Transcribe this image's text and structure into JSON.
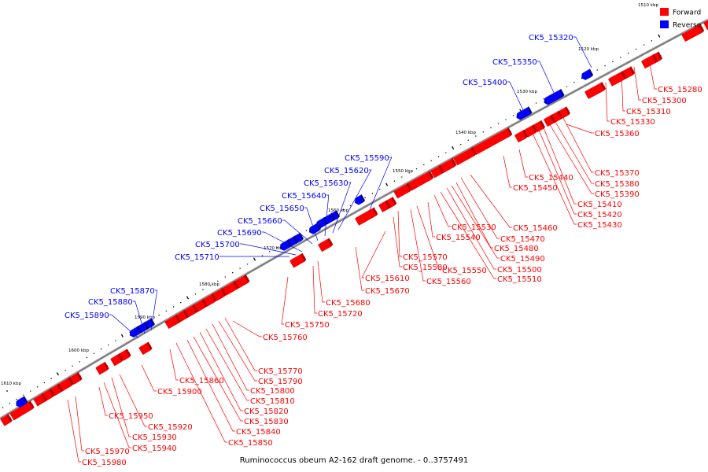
{
  "caption": "Ruminococcus obeum A2-162 draft genome. - 0..3757491",
  "legend": [
    {
      "label": "Forward",
      "color": "#ff0000"
    },
    {
      "label": "Reverse",
      "color": "#0000ff"
    }
  ],
  "colors": {
    "forward": "#ff0000",
    "reverse": "#0000ff",
    "backbone": "#808080"
  },
  "tick_labels": [
    "1510 kbp",
    "1520 kbp",
    "1530 kbp",
    "1540 kbp",
    "1550 kbp",
    "1560 kbp",
    "1570 kbp",
    "1580 kbp",
    "1590 kbp",
    "1600 kbp",
    "1610 kbp"
  ],
  "forward_genes": [
    "CK5_15280",
    "CK5_15300",
    "CK5_15310",
    "CK5_15330",
    "CK5_15360",
    "CK5_15370",
    "CK5_15380",
    "CK5_15390",
    "CK5_15410",
    "CK5_15420",
    "CK5_15430",
    "CK5_15440",
    "CK5_15450",
    "CK5_15460",
    "CK5_15470",
    "CK5_15480",
    "CK5_15490",
    "CK5_15500",
    "CK5_15510",
    "CK5_15530",
    "CK5_15540",
    "CK5_15550",
    "CK5_15560",
    "CK5_15570",
    "CK5_15580",
    "CK5_15610",
    "CK5_15670",
    "CK5_15680",
    "CK5_15720",
    "CK5_15750",
    "CK5_15760",
    "CK5_15770",
    "CK5_15790",
    "CK5_15800",
    "CK5_15810",
    "CK5_15820",
    "CK5_15830",
    "CK5_15840",
    "CK5_15850",
    "CK5_15860",
    "CK5_15900",
    "CK5_15920",
    "CK5_15930",
    "CK5_15940",
    "CK5_15950",
    "CK5_15970",
    "CK5_15980"
  ],
  "reverse_genes": [
    "CK5_15320",
    "CK5_15350",
    "CK5_15400",
    "CK5_15590",
    "CK5_15620",
    "CK5_15630",
    "CK5_15640",
    "CK5_15650",
    "CK5_15660",
    "CK5_15690",
    "CK5_15700",
    "CK5_15710",
    "CK5_15870",
    "CK5_15880",
    "CK5_15890"
  ]
}
